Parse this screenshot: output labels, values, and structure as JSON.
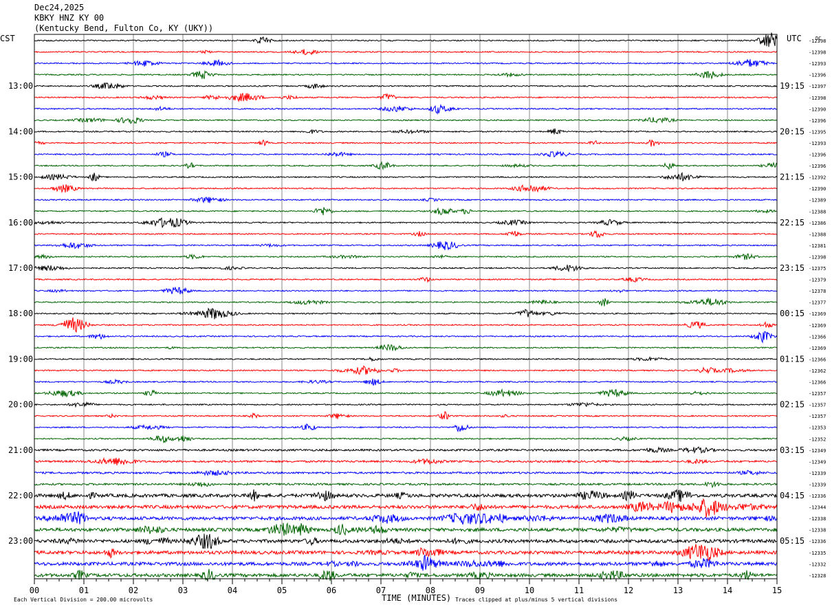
{
  "header": {
    "date": "Dec24,2025",
    "station": "KBKY HNZ KY 00",
    "location": "(Kentucky Bend, Fulton Co, KY (UKY))"
  },
  "labels": {
    "left_tz": "CST",
    "right_tz": "UTC",
    "dc": "DC",
    "xlabel": "TIME (MINUTES)",
    "footer_left": "Each Vertical Division =  200.00 microvolts",
    "footer_right": "Traces clipped at plus/minus 5 vertical divisions"
  },
  "chart_data": {
    "type": "line",
    "title": "KBKY HNZ KY 00",
    "xlabel": "TIME (MINUTES)",
    "x_ticks": [
      "00",
      "01",
      "02",
      "03",
      "04",
      "05",
      "06",
      "07",
      "08",
      "09",
      "10",
      "11",
      "12",
      "13",
      "14",
      "15"
    ],
    "xlim": [
      0,
      15
    ],
    "rows_count": 48,
    "trace_colors": [
      "#000000",
      "#ff0000",
      "#0000ff",
      "#006400"
    ],
    "left_hour_labels": [
      {
        "row": 4,
        "label": "13:00"
      },
      {
        "row": 8,
        "label": "14:00"
      },
      {
        "row": 12,
        "label": "15:00"
      },
      {
        "row": 16,
        "label": "16:00"
      },
      {
        "row": 20,
        "label": "17:00"
      },
      {
        "row": 24,
        "label": "18:00"
      },
      {
        "row": 28,
        "label": "19:00"
      },
      {
        "row": 32,
        "label": "20:00"
      },
      {
        "row": 36,
        "label": "21:00"
      },
      {
        "row": 40,
        "label": "22:00"
      },
      {
        "row": 44,
        "label": "23:00"
      }
    ],
    "right_hour_labels": [
      {
        "row": 4,
        "label": "19:15"
      },
      {
        "row": 8,
        "label": "20:15"
      },
      {
        "row": 12,
        "label": "21:15"
      },
      {
        "row": 16,
        "label": "22:15"
      },
      {
        "row": 20,
        "label": "23:15"
      },
      {
        "row": 24,
        "label": "00:15"
      },
      {
        "row": 28,
        "label": "01:15"
      },
      {
        "row": 32,
        "label": "02:15"
      },
      {
        "row": 36,
        "label": "03:15"
      },
      {
        "row": 40,
        "label": "04:15"
      },
      {
        "row": 44,
        "label": "05:15"
      }
    ],
    "dc_offsets": [
      "-12398",
      "-12398",
      "-12393",
      "-12396",
      "-12397",
      "-12398",
      "-12390",
      "-12396",
      "-12395",
      "-12393",
      "-12396",
      "-12396",
      "-12392",
      "-12390",
      "-12389",
      "-12388",
      "-12386",
      "-12388",
      "-12381",
      "-12398",
      "-12375",
      "-12379",
      "-12378",
      "-12377",
      "-12369",
      "-12369",
      "-12366",
      "-12369",
      "-12366",
      "-12362",
      "-12366",
      "-12357",
      "-12357",
      "-12357",
      "-12353",
      "-12352",
      "-12349",
      "-12349",
      "-12339",
      "-12339",
      "-12336",
      "-12344",
      "-12338",
      "-12338",
      "-12336",
      "-12335",
      "-12332",
      "-12328"
    ]
  }
}
